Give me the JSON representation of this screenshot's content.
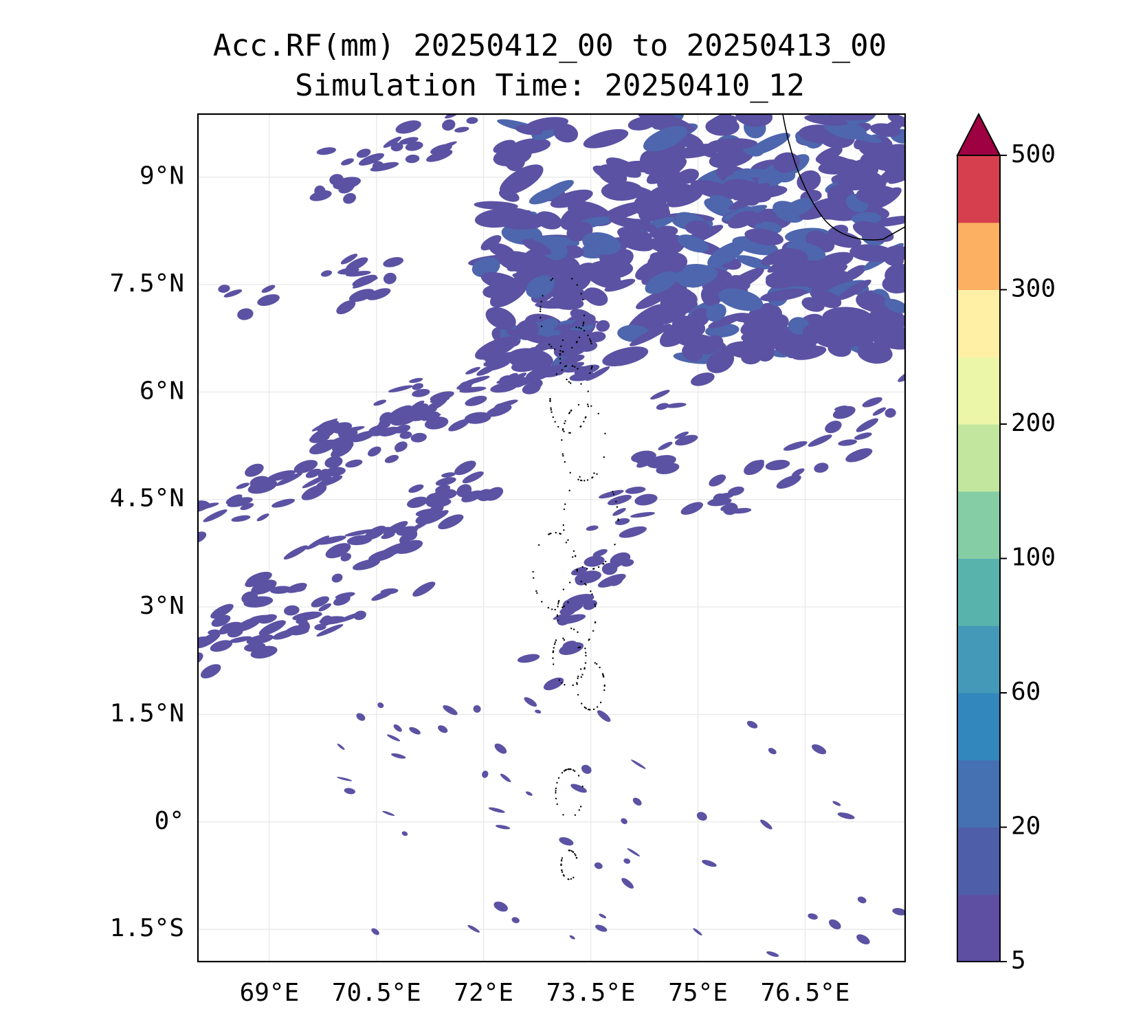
{
  "title": {
    "line1": "Acc.RF(mm) 20250412_00 to 20250413_00",
    "line2": "Simulation Time: 20250410_12"
  },
  "map": {
    "lon_range": [
      68.0,
      77.9
    ],
    "lat_range": [
      -1.95,
      9.88
    ],
    "x_ticks": [
      {
        "value": 69.0,
        "label": "69°E"
      },
      {
        "value": 70.5,
        "label": "70.5°E"
      },
      {
        "value": 72.0,
        "label": "72°E"
      },
      {
        "value": 73.5,
        "label": "73.5°E"
      },
      {
        "value": 75.0,
        "label": "75°E"
      },
      {
        "value": 76.5,
        "label": "76.5°E"
      }
    ],
    "y_ticks": [
      {
        "value": 9.0,
        "label": "9°N"
      },
      {
        "value": 7.5,
        "label": "7.5°N"
      },
      {
        "value": 6.0,
        "label": "6°N"
      },
      {
        "value": 4.5,
        "label": "4.5°N"
      },
      {
        "value": 3.0,
        "label": "3°N"
      },
      {
        "value": 1.5,
        "label": "1.5°N"
      },
      {
        "value": 0.0,
        "label": "0°"
      },
      {
        "value": -1.5,
        "label": "1.5°S"
      }
    ],
    "gridlines": true
  },
  "colorbar": {
    "levels": [
      5,
      10,
      20,
      40,
      60,
      80,
      100,
      150,
      200,
      250,
      300,
      400,
      500
    ],
    "labeled_ticks": [
      {
        "value": 5,
        "label": "5"
      },
      {
        "value": 20,
        "label": "20"
      },
      {
        "value": 60,
        "label": "60"
      },
      {
        "value": 100,
        "label": "100"
      },
      {
        "value": 200,
        "label": "200"
      },
      {
        "value": 300,
        "label": "300"
      },
      {
        "value": 500,
        "label": "500"
      }
    ],
    "colors": [
      "#5e4fa2",
      "#4f5ea8",
      "#4570b2",
      "#3288bd",
      "#4499b8",
      "#59b3ad",
      "#85cda4",
      "#c3e69f",
      "#ecf6a9",
      "#fff0a6",
      "#fcb061",
      "#d6404e"
    ],
    "extend_color": "#9e0142"
  },
  "rain_colors": {
    "light": "#5b52a3",
    "moderate": "#4d66ad"
  }
}
